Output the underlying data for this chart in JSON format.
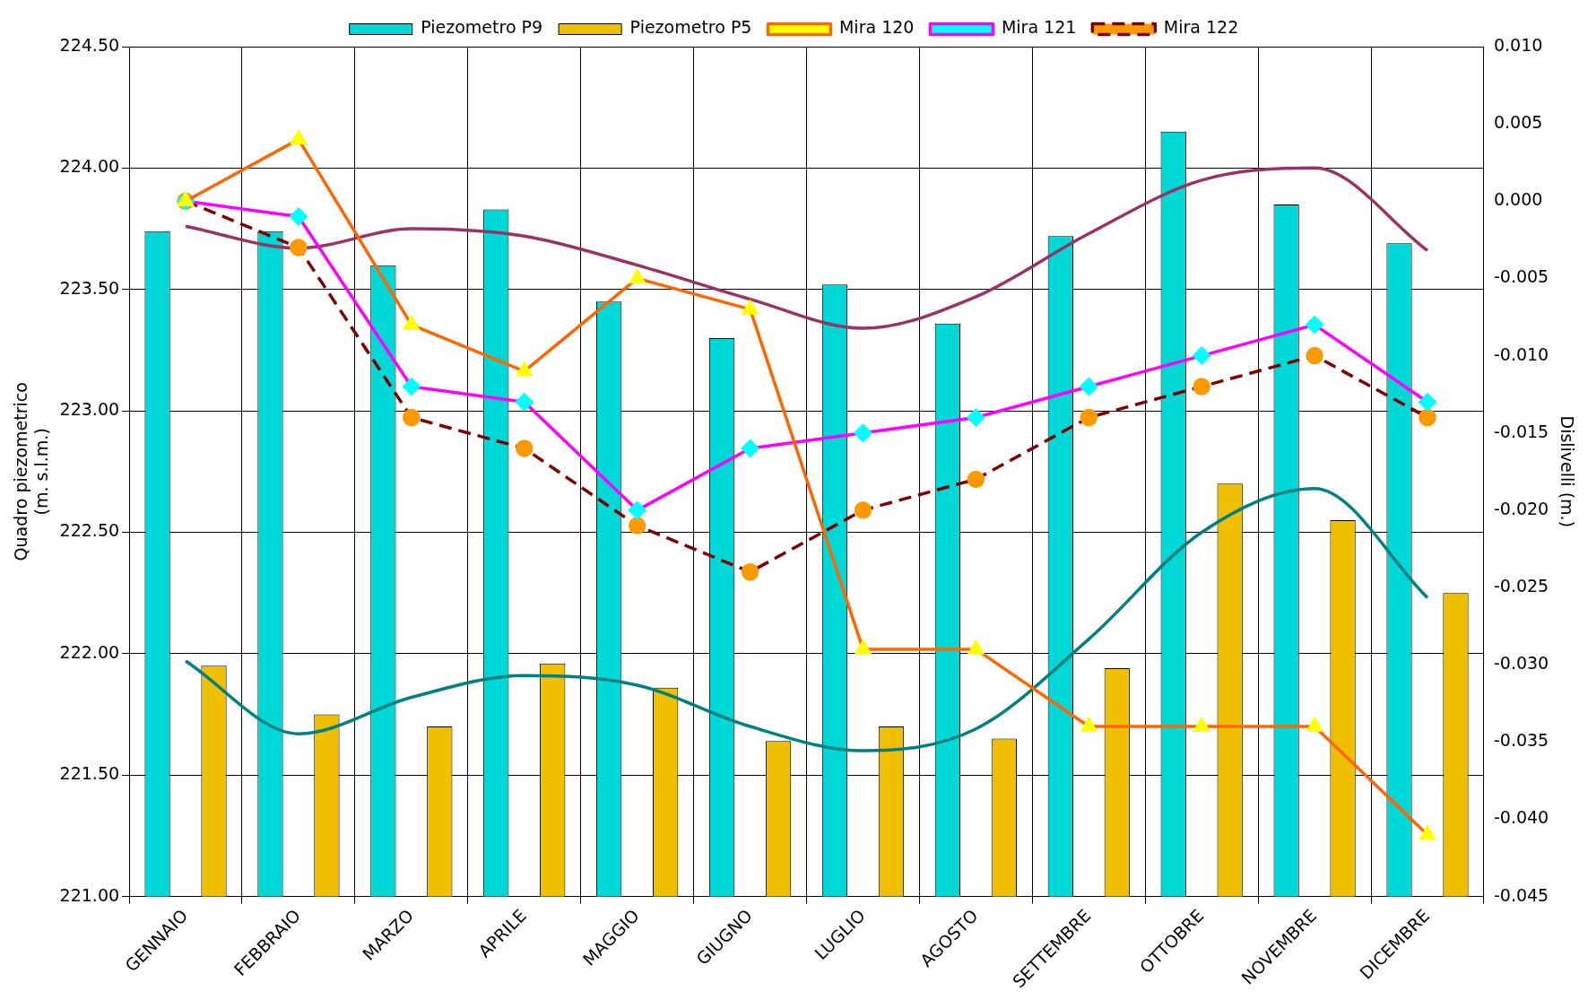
{
  "chart_data": {
    "type": "bar",
    "ylabel": "Quadro piezometrico\n(m. s.l.m.)",
    "y2label": "Dislivelli (m.)",
    "categories": [
      "GENNAIO",
      "FEBBRAIO",
      "MARZO",
      "APRILE",
      "MAGGIO",
      "GIUGNO",
      "LUGLIO",
      "AGOSTO",
      "SETTEMBRE",
      "OTTOBRE",
      "NOVEMBRE",
      "DICEMBRE"
    ],
    "series": [
      {
        "name": "Piezometro P9",
        "color": "#00d8d8",
        "values": [
          223.74,
          223.74,
          223.6,
          223.83,
          223.45,
          223.3,
          223.52,
          223.36,
          223.72,
          224.15,
          223.85,
          223.69
        ]
      },
      {
        "name": "Piezometro P5",
        "color": "#f0c000",
        "values": [
          221.95,
          221.75,
          221.7,
          221.96,
          221.86,
          221.64,
          221.7,
          221.65,
          221.94,
          222.7,
          222.55,
          222.25
        ]
      },
      {
        "name": "Mira 120",
        "type": "line",
        "axis": "y2",
        "color": "#ff6600",
        "marker": "triangle",
        "line_style": "solid",
        "colors": [
          "#ffff00",
          "#ffff00",
          "#ffff00",
          "#ffff00",
          "#ffff00",
          "#ffff00",
          "#ffff00",
          "#ffff00",
          "#ffff00",
          "#ffff00",
          "#ffff00",
          "#ffff00"
        ],
        "values": [
          0.0,
          0.004,
          -0.008,
          -0.011,
          -0.005,
          -0.007,
          -0.029,
          -0.029,
          -0.034,
          -0.034,
          -0.034,
          -0.041
        ]
      },
      {
        "name": "Mira 121",
        "type": "line",
        "axis": "y2",
        "color": "#ff00ff",
        "marker": "diamond",
        "line_style": "solid",
        "colors": [
          "#00ffff",
          "#00ffff",
          "#00ffff",
          "#00ffff",
          "#00ffff",
          "#00ffff",
          "#00ffff",
          "#00ffff",
          "#00ffff",
          "#00ffff",
          "#00ffff",
          "#00ffff"
        ],
        "values": [
          0.0,
          -0.001,
          -0.012,
          -0.013,
          -0.02,
          -0.016,
          -0.015,
          -0.014,
          -0.012,
          -0.01,
          -0.008,
          -0.013
        ]
      },
      {
        "name": "Mira 122",
        "type": "line",
        "axis": "y2",
        "color": "#800000",
        "marker": "circle",
        "line_style": "dashed",
        "colors": [
          "#ff9900",
          "#ff9900",
          "#ff9900",
          "#ff9900",
          "#ff9900",
          "#ff9900",
          "#ff9900",
          "#ff9900",
          "#ff9900",
          "#ff9900",
          "#ff9900",
          "#ff9900"
        ],
        "values": [
          0.0,
          -0.003,
          -0.014,
          -0.016,
          -0.021,
          -0.024,
          -0.02,
          -0.018,
          -0.014,
          -0.012,
          -0.01,
          -0.014
        ]
      },
      {
        "type": "line",
        "color": "#993366",
        "marker": "none",
        "line_style": "solid",
        "values": [
          223.76,
          223.67,
          223.75,
          223.72,
          223.6,
          223.46,
          223.34,
          223.47,
          223.73,
          223.95,
          224.0,
          223.66
        ]
      },
      {
        "type": "line",
        "color": "#008080",
        "marker": "none",
        "line_style": "solid",
        "values": [
          221.97,
          221.67,
          221.82,
          221.91,
          221.87,
          221.7,
          221.6,
          221.69,
          222.06,
          222.5,
          222.68,
          222.23
        ]
      }
    ],
    "ylim": [
      221.0,
      224.5
    ],
    "yticks": [
      {
        "value": 221,
        "label": "221.00"
      },
      {
        "value": 221.5,
        "label": "221.50"
      },
      {
        "value": 222,
        "label": "222.00"
      },
      {
        "value": 222.5,
        "label": "222.50"
      },
      {
        "value": 223,
        "label": "223.00"
      },
      {
        "value": 223.5,
        "label": "223.50"
      },
      {
        "value": 224,
        "label": "224.00"
      },
      {
        "value": 224.5,
        "label": "224.50"
      }
    ],
    "y2lim": [
      -0.045,
      0.01
    ],
    "y2ticks": [
      {
        "value": -0.045,
        "label": "-0.045"
      },
      {
        "value": -0.04,
        "label": "-0.040"
      },
      {
        "value": -0.035,
        "label": "-0.035"
      },
      {
        "value": -0.03,
        "label": "-0.030"
      },
      {
        "value": -0.025,
        "label": "-0.025"
      },
      {
        "value": -0.02,
        "label": "-0.020"
      },
      {
        "value": -0.015,
        "label": "-0.015"
      },
      {
        "value": -0.01,
        "label": "-0.010"
      },
      {
        "value": -0.005,
        "label": "-0.005"
      },
      {
        "value": 0,
        "label": "0.000"
      },
      {
        "value": 0.005,
        "label": "0.005"
      },
      {
        "value": 0.01,
        "label": "0.010"
      }
    ],
    "grid": true,
    "legend": "top"
  }
}
